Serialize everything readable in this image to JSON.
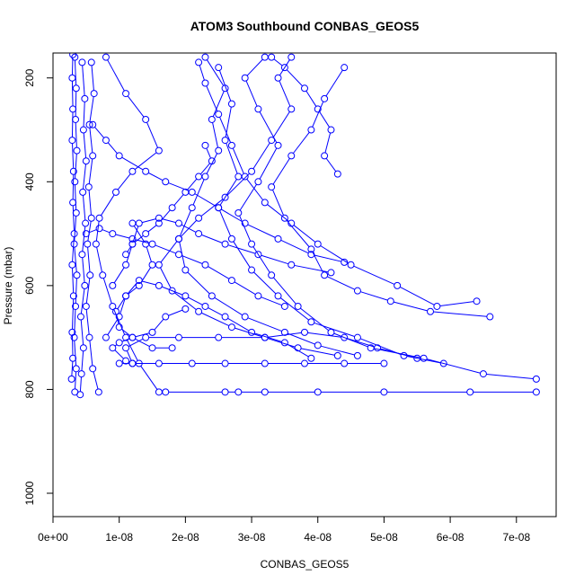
{
  "chart_data": {
    "type": "line",
    "title": "ATOM3 Southbound CONBAS_GEOS5",
    "xlabel": "CONBAS_GEOS5",
    "ylabel": "Pressure (mbar)",
    "xlim": [
      0,
      7.6e-08
    ],
    "ylim": [
      1045,
      152
    ],
    "y_reversed": true,
    "grid": false,
    "legend": "none",
    "marker": "open-circle",
    "x_ticks": [
      {
        "value": 0,
        "label": "0e+00"
      },
      {
        "value": 1e-08,
        "label": "1e-08"
      },
      {
        "value": 2e-08,
        "label": "2e-08"
      },
      {
        "value": 3e-08,
        "label": "3e-08"
      },
      {
        "value": 4e-08,
        "label": "4e-08"
      },
      {
        "value": 5e-08,
        "label": "5e-08"
      },
      {
        "value": 6e-08,
        "label": "6e-08"
      },
      {
        "value": 7e-08,
        "label": "7e-08"
      }
    ],
    "y_ticks": [
      {
        "value": 200,
        "label": "200"
      },
      {
        "value": 400,
        "label": "400"
      },
      {
        "value": 600,
        "label": "600"
      },
      {
        "value": 800,
        "label": "800"
      },
      {
        "value": 1000,
        "label": "1000"
      }
    ],
    "colors": {
      "series": "#0000ff"
    },
    "series": [
      {
        "values": [
          [
            3.3e-09,
            805
          ],
          [
            3.5e-09,
            760
          ],
          [
            3.2e-09,
            700
          ],
          [
            3.4e-09,
            640
          ],
          [
            3.6e-09,
            580
          ],
          [
            3.2e-09,
            520
          ],
          [
            3.5e-09,
            460
          ],
          [
            3.3e-09,
            400
          ],
          [
            3.6e-09,
            340
          ],
          [
            3.4e-09,
            280
          ],
          [
            3.5e-09,
            220
          ],
          [
            3.3e-09,
            160
          ]
        ]
      },
      {
        "values": [
          [
            4.1e-09,
            810
          ],
          [
            4.3e-09,
            770
          ],
          [
            4.6e-09,
            720
          ],
          [
            4.2e-09,
            660
          ],
          [
            4.8e-09,
            600
          ],
          [
            4.4e-09,
            540
          ],
          [
            4.9e-09,
            480
          ],
          [
            4.5e-09,
            420
          ],
          [
            5e-09,
            360
          ],
          [
            4.6e-09,
            300
          ],
          [
            4.8e-09,
            240
          ],
          [
            4.4e-09,
            170
          ]
        ]
      },
      {
        "values": [
          [
            2.8e-09,
            780
          ],
          [
            3e-09,
            740
          ],
          [
            2.9e-09,
            690
          ],
          [
            3.1e-09,
            620
          ],
          [
            2.9e-09,
            560
          ],
          [
            3.2e-09,
            500
          ],
          [
            3e-09,
            440
          ],
          [
            3.1e-09,
            380
          ],
          [
            2.9e-09,
            320
          ],
          [
            3e-09,
            260
          ],
          [
            2.9e-09,
            200
          ],
          [
            3e-09,
            155
          ]
        ]
      },
      {
        "values": [
          [
            6.9e-09,
            805
          ],
          [
            6e-09,
            760
          ],
          [
            5.5e-09,
            700
          ],
          [
            5e-09,
            640
          ],
          [
            5.6e-09,
            580
          ],
          [
            5.2e-09,
            520
          ],
          [
            5.8e-09,
            470
          ],
          [
            5.4e-09,
            410
          ],
          [
            6e-09,
            350
          ],
          [
            5.5e-09,
            290
          ],
          [
            6.2e-09,
            230
          ],
          [
            5.8e-09,
            170
          ]
        ]
      },
      {
        "values": [
          [
            1.6e-08,
            805
          ],
          [
            1.3e-08,
            750
          ],
          [
            1.1e-08,
            700
          ],
          [
            9e-09,
            640
          ],
          [
            7.5e-09,
            580
          ],
          [
            6.5e-09,
            520
          ],
          [
            7e-09,
            470
          ],
          [
            9.5e-09,
            420
          ],
          [
            1.2e-08,
            380
          ],
          [
            1.6e-08,
            340
          ],
          [
            1.4e-08,
            280
          ],
          [
            1.1e-08,
            230
          ],
          [
            8e-09,
            160
          ]
        ]
      },
      {
        "values": [
          [
            7.3e-08,
            805
          ],
          [
            6.3e-08,
            805
          ],
          [
            5e-08,
            805
          ],
          [
            4e-08,
            805
          ],
          [
            3.2e-08,
            805
          ],
          [
            2.8e-08,
            805
          ],
          [
            2.6e-08,
            805
          ],
          [
            1.7e-08,
            805
          ]
        ]
      },
      {
        "values": [
          [
            7.3e-08,
            780
          ],
          [
            6.5e-08,
            770
          ],
          [
            5.6e-08,
            740
          ],
          [
            4.8e-08,
            720
          ],
          [
            4.2e-08,
            690
          ],
          [
            3.7e-08,
            640
          ],
          [
            3.3e-08,
            580
          ],
          [
            3e-08,
            520
          ],
          [
            2.8e-08,
            460
          ],
          [
            3.1e-08,
            400
          ],
          [
            3.4e-08,
            330
          ],
          [
            3.1e-08,
            260
          ],
          [
            2.9e-08,
            200
          ],
          [
            3.2e-08,
            160
          ]
        ]
      },
      {
        "values": [
          [
            6.6e-08,
            660
          ],
          [
            5.7e-08,
            650
          ],
          [
            5.1e-08,
            630
          ],
          [
            4.6e-08,
            610
          ],
          [
            4.1e-08,
            580
          ],
          [
            3.9e-08,
            530
          ],
          [
            3.5e-08,
            470
          ],
          [
            3.3e-08,
            410
          ],
          [
            3.6e-08,
            350
          ],
          [
            3.9e-08,
            300
          ],
          [
            4.1e-08,
            240
          ],
          [
            4.4e-08,
            180
          ]
        ]
      },
      {
        "values": [
          [
            6.4e-08,
            630
          ],
          [
            5.8e-08,
            640
          ],
          [
            5.2e-08,
            600
          ],
          [
            4.5e-08,
            560
          ],
          [
            4e-08,
            520
          ],
          [
            3.6e-08,
            480
          ],
          [
            3.2e-08,
            440
          ],
          [
            2.9e-08,
            390
          ],
          [
            2.7e-08,
            330
          ],
          [
            2.5e-08,
            270
          ],
          [
            2.3e-08,
            210
          ],
          [
            2.2e-08,
            170
          ]
        ]
      },
      {
        "values": [
          [
            5.9e-08,
            750
          ],
          [
            5.3e-08,
            735
          ],
          [
            4.6e-08,
            700
          ],
          [
            3.9e-08,
            670
          ],
          [
            3.4e-08,
            620
          ],
          [
            3e-08,
            570
          ],
          [
            2.7e-08,
            510
          ],
          [
            2.5e-08,
            450
          ],
          [
            2.8e-08,
            390
          ],
          [
            2.6e-08,
            320
          ],
          [
            2.7e-08,
            250
          ],
          [
            2.5e-08,
            180
          ]
        ]
      },
      {
        "values": [
          [
            4.6e-08,
            735
          ],
          [
            4e-08,
            715
          ],
          [
            3.5e-08,
            690
          ],
          [
            2.9e-08,
            660
          ],
          [
            2.4e-08,
            620
          ],
          [
            2e-08,
            570
          ],
          [
            1.9e-08,
            510
          ],
          [
            2.1e-08,
            450
          ],
          [
            2.3e-08,
            390
          ],
          [
            2.5e-08,
            340
          ],
          [
            2.4e-08,
            280
          ],
          [
            2.6e-08,
            220
          ],
          [
            2.3e-08,
            160
          ]
        ]
      },
      {
        "values": [
          [
            4.3e-08,
            735
          ],
          [
            3.7e-08,
            720
          ],
          [
            3.2e-08,
            700
          ],
          [
            2.7e-08,
            680
          ],
          [
            2.2e-08,
            650
          ],
          [
            1.8e-08,
            610
          ],
          [
            1.6e-08,
            560
          ],
          [
            1.9e-08,
            510
          ],
          [
            2.2e-08,
            470
          ],
          [
            2.6e-08,
            430
          ],
          [
            3e-08,
            380
          ],
          [
            3.3e-08,
            320
          ],
          [
            3.6e-08,
            260
          ],
          [
            3.4e-08,
            200
          ],
          [
            3.6e-08,
            160
          ]
        ]
      },
      {
        "values": [
          [
            5.5e-08,
            740
          ],
          [
            4.9e-08,
            720
          ],
          [
            4.4e-08,
            700
          ],
          [
            3.8e-08,
            690
          ],
          [
            3.2e-08,
            700
          ],
          [
            2.5e-08,
            700
          ],
          [
            1.9e-08,
            700
          ],
          [
            1.4e-08,
            700
          ],
          [
            1.1e-08,
            720
          ],
          [
            1.2e-08,
            750
          ]
        ]
      },
      {
        "values": [
          [
            5e-08,
            750
          ],
          [
            4.4e-08,
            750
          ],
          [
            3.8e-08,
            750
          ],
          [
            3.2e-08,
            750
          ],
          [
            2.6e-08,
            750
          ],
          [
            2.1e-08,
            750
          ],
          [
            1.6e-08,
            750
          ],
          [
            1.2e-08,
            750
          ],
          [
            1e-08,
            750
          ]
        ]
      },
      {
        "values": [
          [
            2e-08,
            645
          ],
          [
            1.7e-08,
            660
          ],
          [
            1.5e-08,
            690
          ],
          [
            1.2e-08,
            700
          ],
          [
            1e-08,
            710
          ],
          [
            9e-09,
            720
          ],
          [
            1.1e-08,
            745
          ]
        ]
      },
      {
        "values": [
          [
            3.9e-08,
            740
          ],
          [
            3.5e-08,
            710
          ],
          [
            3e-08,
            690
          ],
          [
            2.6e-08,
            660
          ],
          [
            2.3e-08,
            640
          ],
          [
            2e-08,
            620
          ],
          [
            1.6e-08,
            600
          ],
          [
            1.3e-08,
            590
          ],
          [
            1.1e-08,
            620
          ],
          [
            1e-08,
            660
          ],
          [
            8e-09,
            700
          ]
        ]
      },
      {
        "values": [
          [
            4.2e-08,
            575
          ],
          [
            3.6e-08,
            560
          ],
          [
            3.1e-08,
            540
          ],
          [
            2.6e-08,
            520
          ],
          [
            2.2e-08,
            500
          ],
          [
            1.9e-08,
            480
          ],
          [
            1.6e-08,
            470
          ],
          [
            1.3e-08,
            480
          ],
          [
            1.2e-08,
            520
          ],
          [
            1.1e-08,
            560
          ],
          [
            9e-09,
            600
          ]
        ]
      },
      {
        "values": [
          [
            4.4e-08,
            555
          ],
          [
            3.9e-08,
            540
          ],
          [
            3.4e-08,
            510
          ],
          [
            2.9e-08,
            480
          ],
          [
            2.5e-08,
            450
          ],
          [
            2.1e-08,
            420
          ],
          [
            1.7e-08,
            400
          ],
          [
            1.4e-08,
            380
          ],
          [
            1e-08,
            350
          ],
          [
            8e-09,
            320
          ],
          [
            6e-09,
            290
          ]
        ]
      },
      {
        "values": [
          [
            3.5e-08,
            640
          ],
          [
            3.1e-08,
            620
          ],
          [
            2.7e-08,
            590
          ],
          [
            2.3e-08,
            560
          ],
          [
            1.9e-08,
            540
          ],
          [
            1.5e-08,
            520
          ],
          [
            1.2e-08,
            510
          ],
          [
            9e-09,
            500
          ],
          [
            7e-09,
            490
          ],
          [
            5e-09,
            500
          ]
        ]
      },
      {
        "values": [
          [
            4.3e-08,
            385
          ],
          [
            4.1e-08,
            350
          ],
          [
            4.2e-08,
            300
          ],
          [
            4e-08,
            260
          ],
          [
            3.8e-08,
            220
          ],
          [
            3.5e-08,
            180
          ],
          [
            3.3e-08,
            160
          ]
        ]
      },
      {
        "values": [
          [
            2.3e-08,
            330
          ],
          [
            2.4e-08,
            360
          ],
          [
            2.2e-08,
            390
          ],
          [
            2e-08,
            420
          ],
          [
            1.8e-08,
            450
          ],
          [
            1.6e-08,
            480
          ],
          [
            1.4e-08,
            500
          ],
          [
            1.2e-08,
            520
          ],
          [
            1.1e-08,
            540
          ]
        ]
      },
      {
        "values": [
          [
            1.8e-08,
            720
          ],
          [
            1.5e-08,
            720
          ],
          [
            1.2e-08,
            700
          ],
          [
            1e-08,
            680
          ],
          [
            9.5e-09,
            650
          ],
          [
            1.1e-08,
            620
          ],
          [
            1.3e-08,
            600
          ],
          [
            1.5e-08,
            560
          ],
          [
            1.4e-08,
            520
          ],
          [
            1.2e-08,
            480
          ]
        ]
      }
    ]
  }
}
